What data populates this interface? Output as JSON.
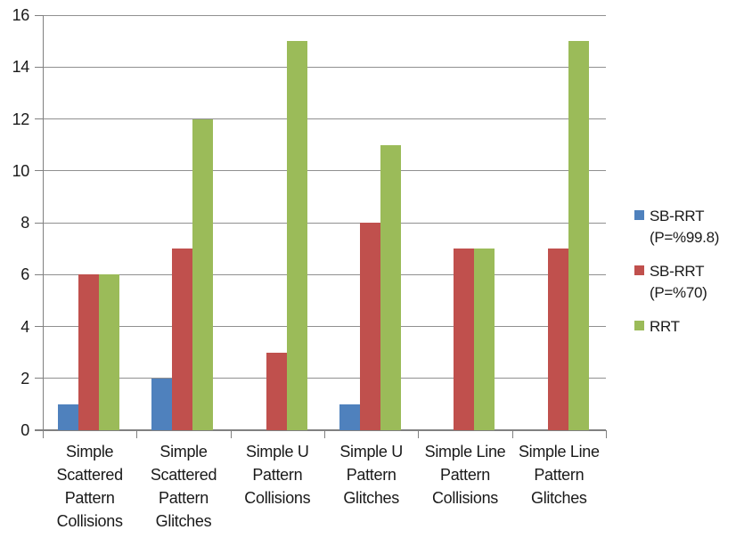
{
  "chart_data": {
    "type": "bar",
    "title": "",
    "xlabel": "",
    "ylabel": "",
    "categories": [
      "Simple Scattered Pattern Collisions",
      "Simple Scattered Pattern Glitches",
      "Simple U Pattern Collisions",
      "Simple U Pattern Glitches",
      "Simple Line Pattern Collisions",
      "Simple Line Pattern Glitches"
    ],
    "category_label_lines": [
      [
        "Simple",
        "Scattered",
        "Pattern",
        "Collisions"
      ],
      [
        "Simple",
        "Scattered",
        "Pattern",
        "Glitches"
      ],
      [
        "Simple U",
        "Pattern",
        "Collisions"
      ],
      [
        "Simple U",
        "Pattern",
        "Glitches"
      ],
      [
        "Simple Line",
        "Pattern",
        "Collisions"
      ],
      [
        "Simple Line",
        "Pattern",
        "Glitches"
      ]
    ],
    "series": [
      {
        "name": "SB-RRT (P=%99.8)",
        "legend_lines": [
          "SB-RRT",
          "(P=%99.8)"
        ],
        "color": "#4F81BD",
        "values": [
          1,
          2,
          0,
          1,
          0,
          0
        ]
      },
      {
        "name": "SB-RRT (P=%70)",
        "legend_lines": [
          "SB-RRT",
          "(P=%70)"
        ],
        "color": "#C0504D",
        "values": [
          6,
          7,
          3,
          8,
          7,
          7
        ]
      },
      {
        "name": "RRT",
        "legend_lines": [
          "RRT"
        ],
        "color": "#9BBB59",
        "values": [
          6,
          12,
          15,
          11,
          7,
          15
        ]
      }
    ],
    "ylim": [
      0,
      16
    ],
    "ytick_step": 2,
    "ytick_labels": [
      "0",
      "2",
      "4",
      "6",
      "8",
      "10",
      "12",
      "14",
      "16"
    ],
    "grid": true,
    "legend_position": "right",
    "colors": {
      "grid": "#909090",
      "axis": "#808080",
      "text": "#1a1a1a",
      "background": "#FFFFFF"
    }
  }
}
